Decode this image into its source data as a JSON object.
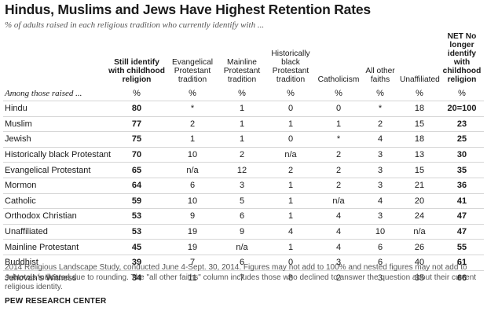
{
  "title": "Hindus, Muslims and Jews Have Highest Retention Rates",
  "subtitle": "% of adults raised in each religious tradition who currently identify with ...",
  "chart_data": {
    "type": "table",
    "columns": [
      {
        "key": "still",
        "label": "Still identify with childhood religion"
      },
      {
        "key": "evangelical",
        "label": "Evangelical Protestant tradition"
      },
      {
        "key": "mainline",
        "label": "Mainline Protestant tradition"
      },
      {
        "key": "black_prot",
        "label": "Historically black Protestant tradition"
      },
      {
        "key": "catholicism",
        "label": "Catholicism"
      },
      {
        "key": "other",
        "label": "All other faiths"
      },
      {
        "key": "unaffiliated",
        "label": "Unaffiliated"
      },
      {
        "key": "net",
        "label": "NET No longer identify with childhood religion"
      }
    ],
    "subheader": {
      "label": "Among those raised ...",
      "values": [
        "%",
        "%",
        "%",
        "%",
        "%",
        "%",
        "%",
        "%"
      ]
    },
    "rows": [
      {
        "label": "Hindu",
        "values": [
          "80",
          "*",
          "1",
          "0",
          "0",
          "*",
          "18",
          "20=100"
        ]
      },
      {
        "label": "Muslim",
        "values": [
          "77",
          "2",
          "1",
          "1",
          "1",
          "2",
          "15",
          "23"
        ]
      },
      {
        "label": "Jewish",
        "values": [
          "75",
          "1",
          "1",
          "0",
          "*",
          "4",
          "18",
          "25"
        ]
      },
      {
        "label": "Historically black Protestant",
        "values": [
          "70",
          "10",
          "2",
          "n/a",
          "2",
          "3",
          "13",
          "30"
        ]
      },
      {
        "label": "Evangelical Protestant",
        "values": [
          "65",
          "n/a",
          "12",
          "2",
          "2",
          "3",
          "15",
          "35"
        ]
      },
      {
        "label": "Mormon",
        "values": [
          "64",
          "6",
          "3",
          "1",
          "2",
          "3",
          "21",
          "36"
        ]
      },
      {
        "label": "Catholic",
        "values": [
          "59",
          "10",
          "5",
          "1",
          "n/a",
          "4",
          "20",
          "41"
        ]
      },
      {
        "label": "Orthodox Christian",
        "values": [
          "53",
          "9",
          "6",
          "1",
          "4",
          "3",
          "24",
          "47"
        ]
      },
      {
        "label": "Unaffiliated",
        "values": [
          "53",
          "19",
          "9",
          "4",
          "4",
          "10",
          "n/a",
          "47"
        ]
      },
      {
        "label": "Mainline Protestant",
        "values": [
          "45",
          "19",
          "n/a",
          "1",
          "4",
          "6",
          "26",
          "55"
        ]
      },
      {
        "label": "Buddhist",
        "values": [
          "39",
          "7",
          "6",
          "0",
          "3",
          "6",
          "40",
          "61"
        ]
      },
      {
        "label": "Jehovah's Witness",
        "values": [
          "34",
          "11",
          "7",
          "8",
          "2",
          "3",
          "35",
          "66"
        ]
      }
    ]
  },
  "note": "2014 Religious Landscape Study, conducted June 4-Sept. 30, 2014. Figures may not add to 100% and nested figures may not add to subtotals indicated due to rounding. The \"all other faiths\" column includes those who declined to answer the question about their current religious identity.",
  "source": "PEW RESEARCH CENTER"
}
